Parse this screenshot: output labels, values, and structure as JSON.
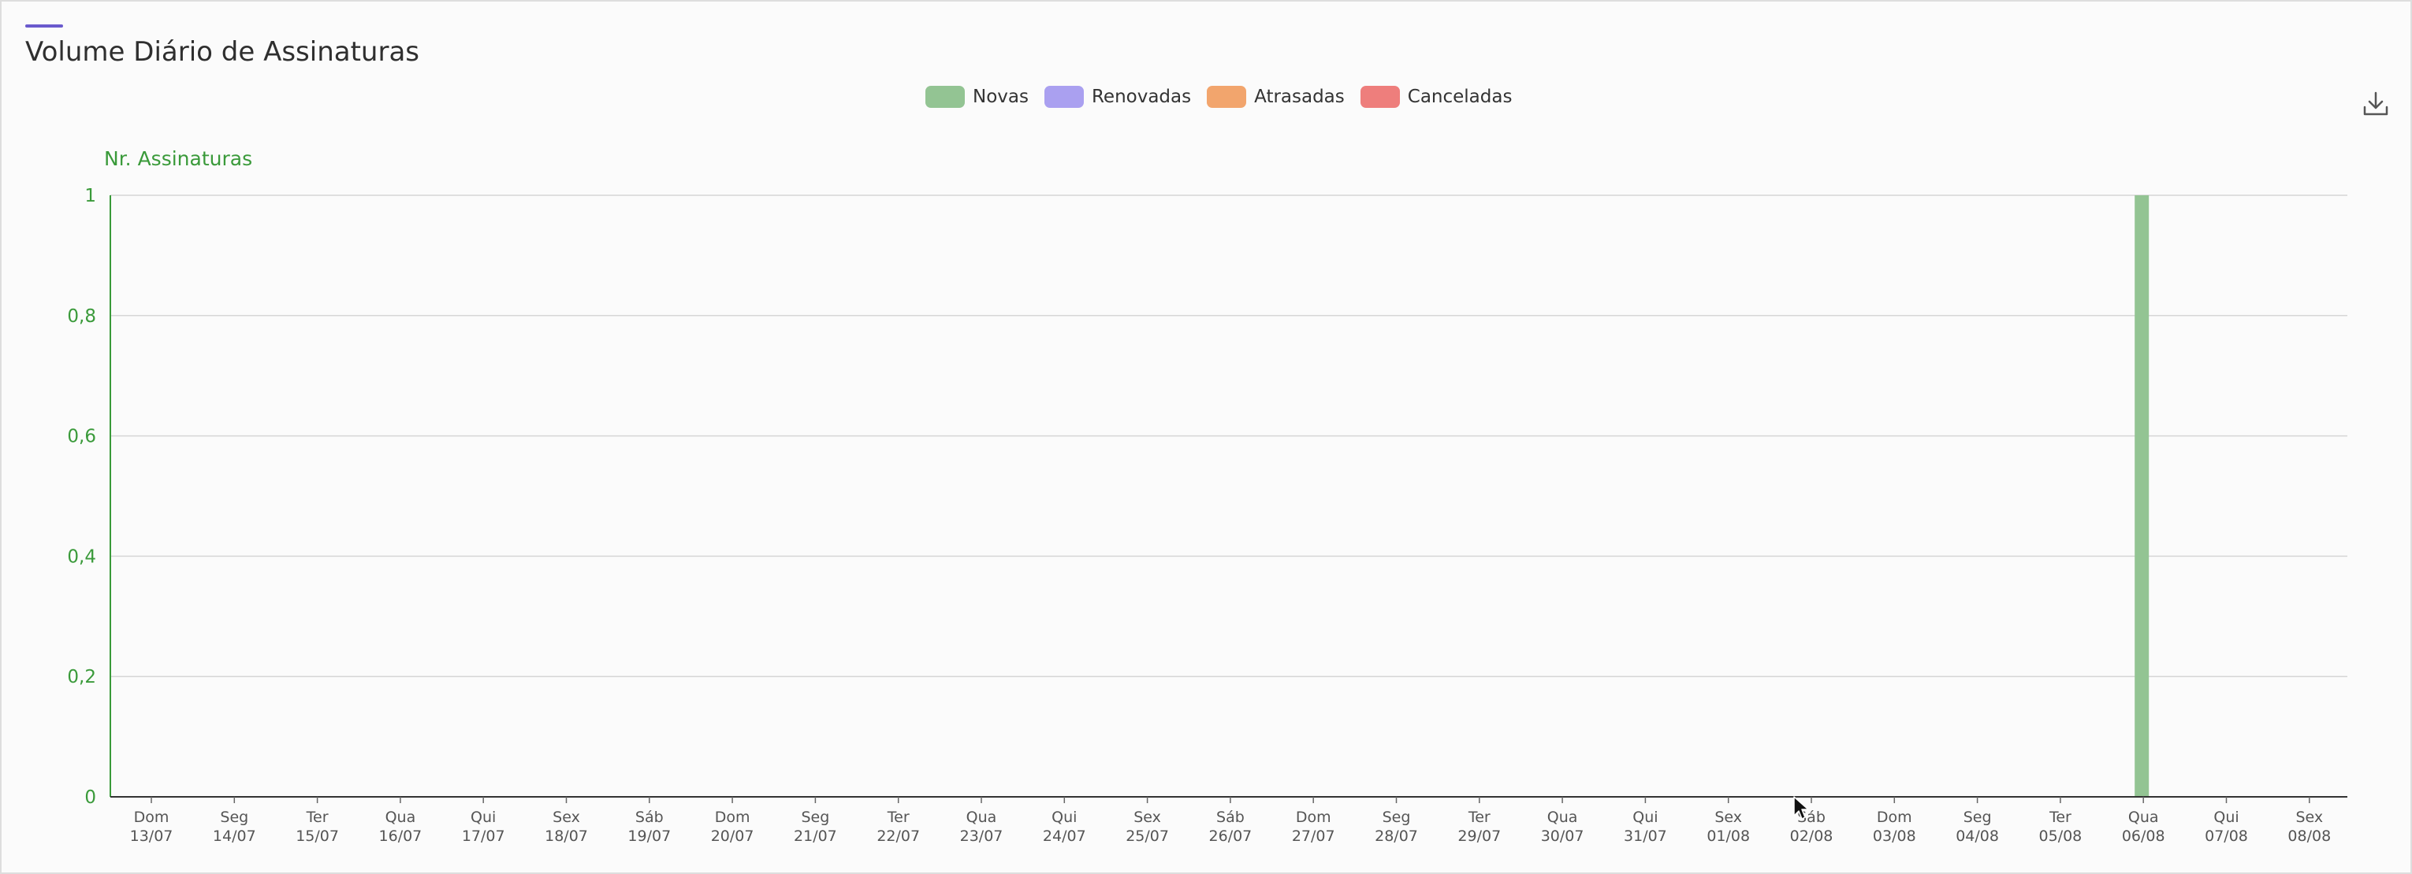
{
  "header": {
    "title": "Volume Diário de Assinaturas",
    "accent_color": "#6a5acd"
  },
  "legend": [
    {
      "label": "Novas",
      "color": "#93c493"
    },
    {
      "label": "Renovadas",
      "color": "#aaa0f0"
    },
    {
      "label": "Atrasadas",
      "color": "#f2a56d"
    },
    {
      "label": "Canceladas",
      "color": "#ee7e7c"
    }
  ],
  "toolbar": {
    "download_icon": "download-icon"
  },
  "chart_data": {
    "type": "bar",
    "title": "Volume Diário de Assinaturas",
    "ylabel": "Nr. Assinaturas",
    "xlabel": "",
    "ylim": [
      0,
      1
    ],
    "yticks": [
      "0",
      "0,2",
      "0,4",
      "0,6",
      "0,8",
      "1"
    ],
    "grid": true,
    "legend_position": "top-center",
    "axis_color": "#3a9a3a",
    "categories": [
      {
        "day": "Dom",
        "date": "13/07"
      },
      {
        "day": "Seg",
        "date": "14/07"
      },
      {
        "day": "Ter",
        "date": "15/07"
      },
      {
        "day": "Qua",
        "date": "16/07"
      },
      {
        "day": "Qui",
        "date": "17/07"
      },
      {
        "day": "Sex",
        "date": "18/07"
      },
      {
        "day": "Sáb",
        "date": "19/07"
      },
      {
        "day": "Dom",
        "date": "20/07"
      },
      {
        "day": "Seg",
        "date": "21/07"
      },
      {
        "day": "Ter",
        "date": "22/07"
      },
      {
        "day": "Qua",
        "date": "23/07"
      },
      {
        "day": "Qui",
        "date": "24/07"
      },
      {
        "day": "Sex",
        "date": "25/07"
      },
      {
        "day": "Sáb",
        "date": "26/07"
      },
      {
        "day": "Dom",
        "date": "27/07"
      },
      {
        "day": "Seg",
        "date": "28/07"
      },
      {
        "day": "Ter",
        "date": "29/07"
      },
      {
        "day": "Qua",
        "date": "30/07"
      },
      {
        "day": "Qui",
        "date": "31/07"
      },
      {
        "day": "Sex",
        "date": "01/08"
      },
      {
        "day": "Sáb",
        "date": "02/08"
      },
      {
        "day": "Dom",
        "date": "03/08"
      },
      {
        "day": "Seg",
        "date": "04/08"
      },
      {
        "day": "Ter",
        "date": "05/08"
      },
      {
        "day": "Qua",
        "date": "06/08"
      },
      {
        "day": "Qui",
        "date": "07/08"
      },
      {
        "day": "Sex",
        "date": "08/08"
      }
    ],
    "series": [
      {
        "name": "Novas",
        "color": "#93c493",
        "values": [
          0,
          0,
          0,
          0,
          0,
          0,
          0,
          0,
          0,
          0,
          0,
          0,
          0,
          0,
          0,
          0,
          0,
          0,
          0,
          0,
          0,
          0,
          0,
          0,
          1,
          0,
          0
        ]
      },
      {
        "name": "Renovadas",
        "color": "#aaa0f0",
        "values": [
          0,
          0,
          0,
          0,
          0,
          0,
          0,
          0,
          0,
          0,
          0,
          0,
          0,
          0,
          0,
          0,
          0,
          0,
          0,
          0,
          0,
          0,
          0,
          0,
          0,
          0,
          0
        ]
      },
      {
        "name": "Atrasadas",
        "color": "#f2a56d",
        "values": [
          0,
          0,
          0,
          0,
          0,
          0,
          0,
          0,
          0,
          0,
          0,
          0,
          0,
          0,
          0,
          0,
          0,
          0,
          0,
          0,
          0,
          0,
          0,
          0,
          0,
          0,
          0
        ]
      },
      {
        "name": "Canceladas",
        "color": "#ee7e7c",
        "values": [
          0,
          0,
          0,
          0,
          0,
          0,
          0,
          0,
          0,
          0,
          0,
          0,
          0,
          0,
          0,
          0,
          0,
          0,
          0,
          0,
          0,
          0,
          0,
          0,
          0,
          0,
          0
        ]
      }
    ]
  }
}
